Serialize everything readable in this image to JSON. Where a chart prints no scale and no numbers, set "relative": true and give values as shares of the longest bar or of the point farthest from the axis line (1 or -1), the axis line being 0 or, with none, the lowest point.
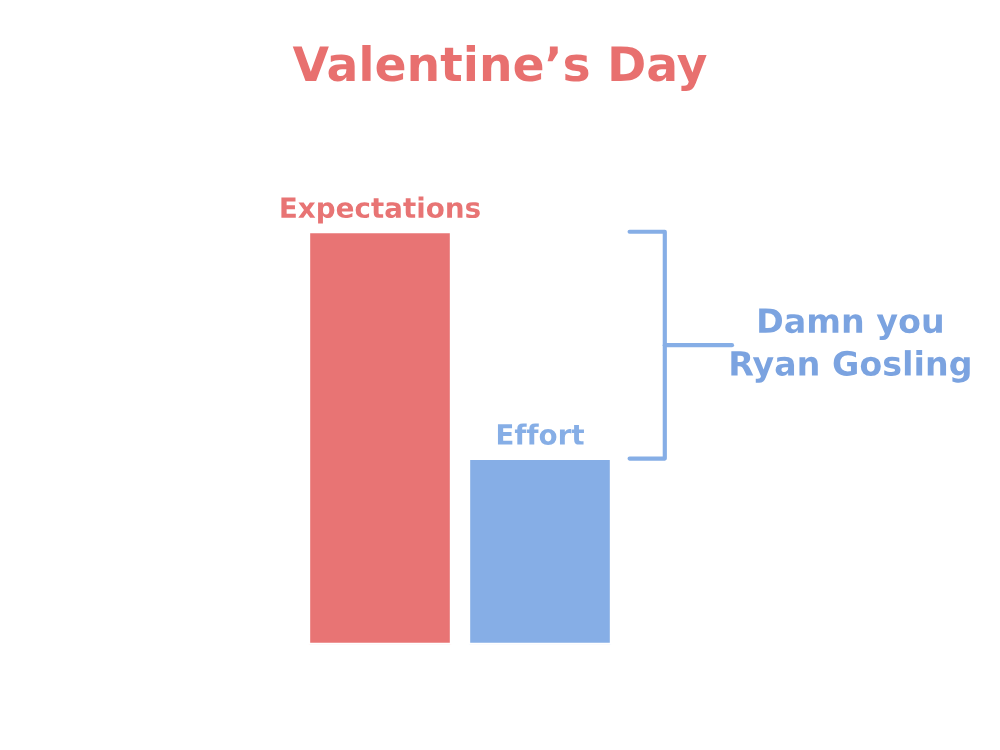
{
  "chart_data": {
    "type": "bar",
    "title": "Valentine’s Day",
    "relative": true,
    "categories": [
      "Expectations",
      "Effort"
    ],
    "values": [
      1,
      0.45
    ],
    "colors": [
      "#e87474",
      "#86aee6"
    ],
    "annotations": [
      "Damn you\nRyan Gosling"
    ]
  }
}
